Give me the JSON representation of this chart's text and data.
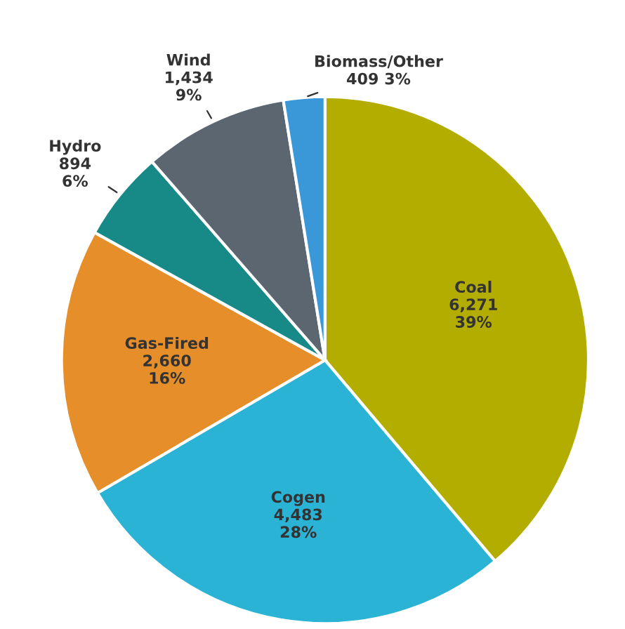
{
  "chart_data": {
    "type": "pie",
    "categories": [
      "Coal",
      "Cogen",
      "Gas-Fired",
      "Hydro",
      "Wind",
      "Biomass/Other"
    ],
    "values": [
      6271,
      4483,
      2660,
      894,
      1434,
      409
    ],
    "value_labels": [
      "6,271\n39%",
      "4,483\n28%",
      "2,660\n16%",
      "894\n6%",
      "1,434\n9%",
      "409 3%"
    ],
    "colors": [
      "#b3ad00",
      "#2bb3d6",
      "#e58e2a",
      "#178a88",
      "#5b6670",
      "#3a98d8"
    ]
  }
}
